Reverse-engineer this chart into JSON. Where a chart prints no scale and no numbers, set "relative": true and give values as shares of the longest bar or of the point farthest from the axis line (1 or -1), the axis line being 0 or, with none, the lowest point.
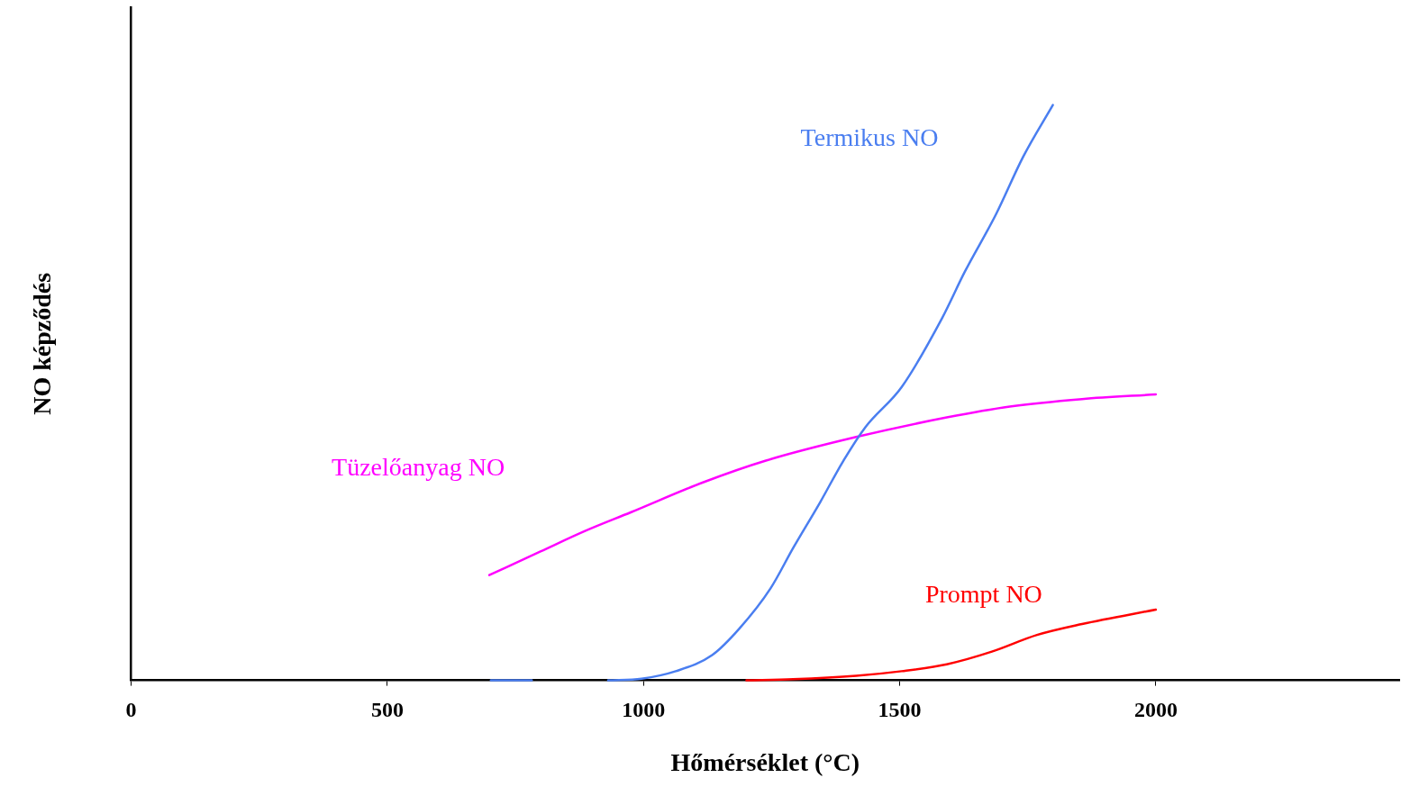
{
  "chart_data": {
    "type": "line",
    "xlabel": "Hőmérséklet (°C)",
    "ylabel": "NO képződés",
    "relative": true,
    "xlim": [
      0,
      2475
    ],
    "xticks": [
      0,
      500,
      1000,
      1500,
      2000
    ],
    "grid": false,
    "legend": false,
    "marker": "none",
    "line_style": "solid",
    "series": [
      {
        "name": "Termikus NO",
        "color": "#4a7ef0",
        "x": [
          702,
          782,
          850,
          931,
          996,
          1063,
          1134,
          1187,
          1248,
          1292,
          1345,
          1389,
          1433,
          1504,
          1583,
          1627,
          1688,
          1741,
          1799
        ],
        "values": [
          0,
          0,
          null,
          0,
          0.003,
          0.016,
          0.044,
          0.09,
          0.16,
          0.23,
          0.31,
          0.38,
          0.44,
          0.51,
          0.63,
          0.71,
          0.81,
          0.91,
          1
        ]
      },
      {
        "name": "Tüzelőanyag NO",
        "color": "#ff00ff",
        "x": [
          699,
          799,
          887,
          975,
          1116,
          1239,
          1415,
          1592,
          1715,
          1856,
          2000
        ],
        "values": [
          0.183,
          0.224,
          0.26,
          0.292,
          0.344,
          0.382,
          0.423,
          0.457,
          0.476,
          0.489,
          0.497
        ]
      },
      {
        "name": "Prompt NO",
        "color": "#ff0000",
        "x": [
          1201,
          1292,
          1415,
          1504,
          1592,
          1680,
          1768,
          1856,
          2000
        ],
        "values": [
          0,
          0.002,
          0.008,
          0.016,
          0.028,
          0.05,
          0.079,
          0.098,
          0.123
        ]
      }
    ]
  }
}
